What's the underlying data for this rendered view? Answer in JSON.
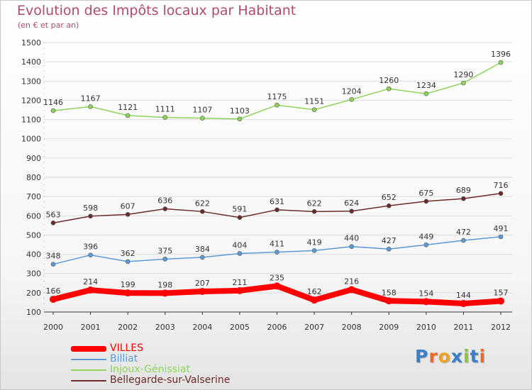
{
  "chart_data": {
    "type": "line",
    "title": "Evolution des Impôts locaux par Habitant",
    "subtitle": "(en € et par an)",
    "xlabel": "",
    "ylabel": "",
    "x": [
      "2000",
      "2001",
      "2002",
      "2003",
      "2004",
      "2005",
      "2006",
      "2007",
      "2008",
      "2009",
      "2010",
      "2011",
      "2012"
    ],
    "ylim": [
      100,
      1500
    ],
    "yticks": [
      100,
      200,
      300,
      400,
      500,
      600,
      700,
      800,
      900,
      1000,
      1100,
      1200,
      1300,
      1400,
      1500
    ],
    "grid": true,
    "legend_position": "bottom-left",
    "series": [
      {
        "name": "VILLES",
        "color": "#ff0000",
        "values": [
          166,
          214,
          199,
          198,
          207,
          211,
          235,
          162,
          216,
          158,
          154,
          144,
          157
        ]
      },
      {
        "name": "Billiat",
        "color": "#5b9bd5",
        "values": [
          348,
          396,
          362,
          375,
          384,
          404,
          411,
          419,
          440,
          427,
          449,
          472,
          491
        ]
      },
      {
        "name": "Injoux-Génissiat",
        "color": "#8fd45a",
        "values": [
          1146,
          1167,
          1121,
          1111,
          1107,
          1103,
          1175,
          1151,
          1204,
          1260,
          1234,
          1290,
          1396
        ]
      },
      {
        "name": "Bellegarde-sur-Valserine",
        "color": "#6b2b2b",
        "values": [
          563,
          598,
          607,
          636,
          622,
          591,
          631,
          622,
          624,
          652,
          675,
          689,
          716
        ]
      }
    ]
  },
  "logo": {
    "text": "Proxiti",
    "letters": [
      "P",
      "r",
      "o",
      "x",
      "i",
      "t",
      "i"
    ],
    "colors": [
      "#3a7fc8",
      "#ee6a2a",
      "#f0a020",
      "#3a7fc8",
      "#8cc63f",
      "#3a7fc8",
      "#ee6a2a"
    ]
  }
}
